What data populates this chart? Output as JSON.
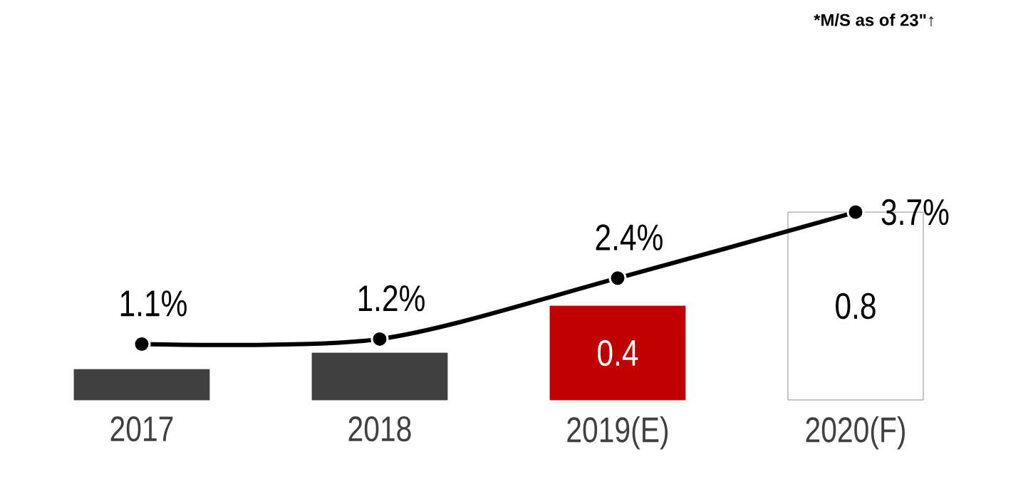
{
  "chart_data": {
    "type": "bar",
    "categories": [
      "2017",
      "2018",
      "2019(E)",
      "2020(F)"
    ],
    "series": [
      {
        "values": [
          0.13,
          0.2,
          0.4,
          0.8
        ],
        "colors": [
          "#404040",
          "#404040",
          "#c00000",
          "#ffffff"
        ],
        "value_labels": [
          null,
          null,
          "0.4",
          "0.8"
        ]
      },
      {
        "type": "line",
        "axis": "y2",
        "color": "#000000",
        "marker": "circle",
        "line_style": "solid",
        "values": [
          1.1,
          1.2,
          2.4,
          3.7
        ],
        "value_labels": [
          "1.1%",
          "1.2%",
          "2.4%",
          "3.7%"
        ]
      }
    ],
    "annotations": [
      "*M/S as of 23\"↑"
    ]
  }
}
